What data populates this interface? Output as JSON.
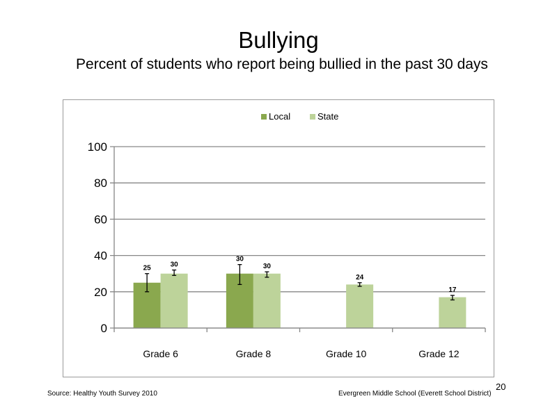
{
  "slide": {
    "title": "Bullying",
    "subtitle": "Percent of students who report being bullied in the past 30 days",
    "source": "Source: Healthy Youth Survey 2010",
    "school": "Evergreen Middle  School (Everett School District)",
    "page_number": "20"
  },
  "chart_data": {
    "type": "bar",
    "categories": [
      "Grade 6",
      "Grade 8",
      "Grade 10",
      "Grade 12"
    ],
    "series": [
      {
        "name": "Local",
        "color": "#8aa84e",
        "values": [
          25,
          30,
          null,
          null
        ],
        "labels": [
          "25",
          "30",
          "",
          ""
        ],
        "error": [
          [
            20,
            30
          ],
          [
            24,
            35
          ],
          null,
          null
        ]
      },
      {
        "name": "State",
        "color": "#bdd39a",
        "values": [
          30,
          30,
          24,
          17
        ],
        "labels": [
          "30",
          "30",
          "24",
          "17"
        ],
        "error": [
          [
            29,
            32
          ],
          [
            28,
            31
          ],
          [
            23,
            25
          ],
          [
            15.5,
            18
          ]
        ]
      }
    ],
    "ylim": [
      0,
      100
    ],
    "yticks": [
      "0",
      "20",
      "40",
      "60",
      "80",
      "100"
    ],
    "ytick_values": [
      0,
      20,
      40,
      60,
      80,
      100
    ],
    "grid": true,
    "legend_position": "top-center"
  }
}
